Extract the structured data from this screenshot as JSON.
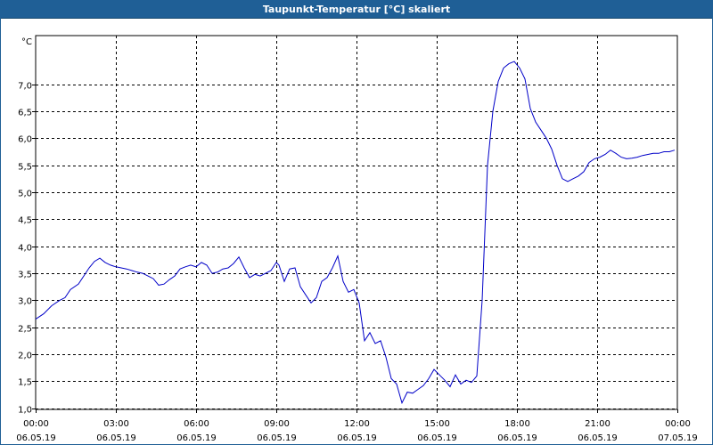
{
  "window": {
    "title": "Taupunkt-Temperatur [°C] skaliert"
  },
  "colors": {
    "titlebar": "#1f5f96",
    "line": "#0000c8",
    "grid": "#000000"
  },
  "chart_data": {
    "type": "line",
    "title": "Taupunkt-Temperatur [°C] skaliert",
    "ylabel": "°C",
    "xlabel": "",
    "grid": true,
    "xlim": [
      0,
      24
    ],
    "ylim": [
      0.98,
      7.9
    ],
    "y_ticks": [
      1.0,
      1.5,
      2.0,
      2.5,
      3.0,
      3.5,
      4.0,
      4.5,
      5.0,
      5.5,
      6.0,
      6.5,
      7.0
    ],
    "y_tick_labels": [
      "1,0",
      "1,5",
      "2,0",
      "2,5",
      "3,0",
      "3,5",
      "4,0",
      "4,5",
      "5,0",
      "5,5",
      "6,0",
      "6,5",
      "7,0"
    ],
    "x_ticks": [
      0,
      3,
      6,
      9,
      12,
      15,
      18,
      21,
      24
    ],
    "x_tick_labels": [
      {
        "time": "00:00",
        "date": "06.05.19"
      },
      {
        "time": "03:00",
        "date": "06.05.19"
      },
      {
        "time": "06:00",
        "date": "06.05.19"
      },
      {
        "time": "09:00",
        "date": "06.05.19"
      },
      {
        "time": "12:00",
        "date": "06.05.19"
      },
      {
        "time": "15:00",
        "date": "06.05.19"
      },
      {
        "time": "18:00",
        "date": "06.05.19"
      },
      {
        "time": "21:00",
        "date": "06.05.19"
      },
      {
        "time": "00:00",
        "date": "07.05.19"
      }
    ],
    "series": [
      {
        "x": [
          0,
          0.3,
          0.6,
          0.9,
          1.1,
          1.3,
          1.6,
          1.8,
          2.0,
          2.2,
          2.4,
          2.6,
          2.8,
          3.0,
          3.2,
          3.4,
          3.6,
          3.8,
          4.0,
          4.2,
          4.4,
          4.6,
          4.8,
          5.0,
          5.2,
          5.4,
          5.6,
          5.8,
          6.0,
          6.2,
          6.4,
          6.6,
          6.8,
          7.0,
          7.2,
          7.4,
          7.6,
          7.8,
          8.0,
          8.2,
          8.4,
          8.6,
          8.8,
          9.0,
          9.1,
          9.3,
          9.5,
          9.7,
          9.9,
          10.1,
          10.3,
          10.5,
          10.7,
          10.9,
          11.1,
          11.3,
          11.5,
          11.7,
          11.9,
          12.1,
          12.3,
          12.5,
          12.7,
          12.9,
          13.1,
          13.3,
          13.5,
          13.7,
          13.9,
          14.1,
          14.3,
          14.5,
          14.7,
          14.9,
          15.1,
          15.3,
          15.5,
          15.7,
          15.9,
          16.1,
          16.3,
          16.5,
          16.7,
          16.9,
          17.1,
          17.3,
          17.5,
          17.7,
          17.9,
          18.1,
          18.3,
          18.5,
          18.7,
          18.9,
          19.1,
          19.3,
          19.5,
          19.7,
          19.9,
          20.1,
          20.3,
          20.5,
          20.7,
          20.9,
          21.1,
          21.3,
          21.5,
          21.7,
          21.9,
          22.1,
          22.3,
          22.5,
          22.7,
          22.9,
          23.1,
          23.3,
          23.5,
          23.7,
          23.9
        ],
        "y": [
          2.65,
          2.75,
          2.9,
          3.0,
          3.05,
          3.2,
          3.3,
          3.45,
          3.6,
          3.72,
          3.78,
          3.7,
          3.65,
          3.62,
          3.6,
          3.58,
          3.55,
          3.52,
          3.5,
          3.45,
          3.4,
          3.28,
          3.3,
          3.38,
          3.45,
          3.58,
          3.62,
          3.65,
          3.62,
          3.7,
          3.65,
          3.5,
          3.52,
          3.58,
          3.6,
          3.68,
          3.8,
          3.6,
          3.42,
          3.48,
          3.45,
          3.5,
          3.55,
          3.7,
          3.65,
          3.35,
          3.58,
          3.6,
          3.25,
          3.1,
          2.95,
          3.05,
          3.35,
          3.42,
          3.6,
          3.82,
          3.35,
          3.15,
          3.2,
          2.95,
          2.25,
          2.4,
          2.2,
          2.25,
          1.95,
          1.55,
          1.45,
          1.1,
          1.3,
          1.28,
          1.35,
          1.42,
          1.55,
          1.72,
          1.62,
          1.52,
          1.4,
          1.62,
          1.45,
          1.52,
          1.48,
          1.6,
          3.0,
          5.5,
          6.5,
          7.05,
          7.3,
          7.38,
          7.42,
          7.3,
          7.1,
          6.55,
          6.3,
          6.15,
          6.0,
          5.8,
          5.5,
          5.25,
          5.2,
          5.25,
          5.3,
          5.38,
          5.55,
          5.62,
          5.65,
          5.7,
          5.78,
          5.72,
          5.65,
          5.62,
          5.63,
          5.65,
          5.68,
          5.7,
          5.72,
          5.72,
          5.75,
          5.75,
          5.78
        ]
      }
    ]
  }
}
